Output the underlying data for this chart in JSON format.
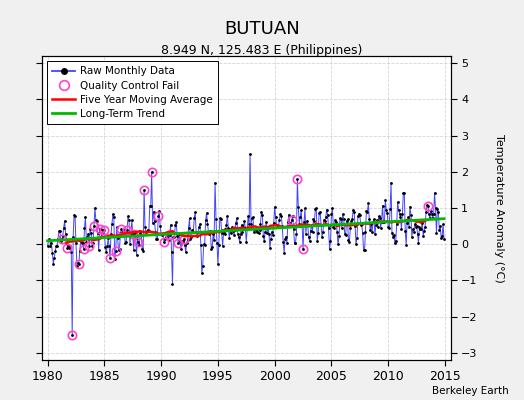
{
  "title": "BUTUAN",
  "subtitle": "8.949 N, 125.483 E (Philippines)",
  "credit": "Berkeley Earth",
  "ylabel": "Temperature Anomaly (°C)",
  "xlim": [
    1979.5,
    2015.5
  ],
  "ylim": [
    -3.2,
    5.2
  ],
  "yticks": [
    -3,
    -2,
    -1,
    0,
    1,
    2,
    3,
    4,
    5
  ],
  "xticks": [
    1980,
    1985,
    1990,
    1995,
    2000,
    2005,
    2010,
    2015
  ],
  "bg_color": "#f0f0f0",
  "plot_bg": "#ffffff",
  "grid_color": "#cccccc",
  "line_color": "#4444ff",
  "ma_color": "#ff0000",
  "trend_color": "#00bb00",
  "qc_color": "#ff44cc"
}
